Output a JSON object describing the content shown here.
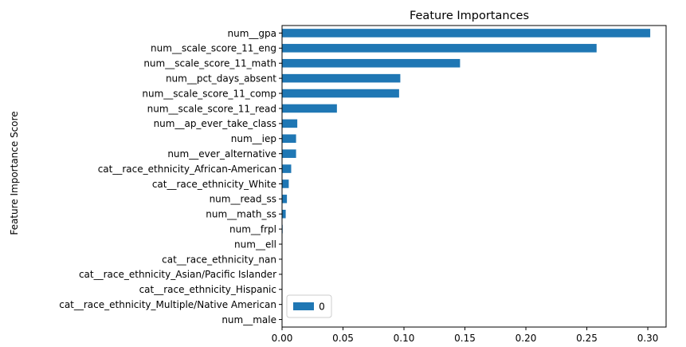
{
  "chart_data": {
    "type": "bar",
    "orientation": "horizontal",
    "title": "Feature Importances",
    "xlabel": "",
    "ylabel": "Feature Importance Score",
    "xlim": [
      0,
      0.315
    ],
    "xticks": [
      0.0,
      0.05,
      0.1,
      0.15,
      0.2,
      0.25,
      0.3
    ],
    "xtick_labels": [
      "0.00",
      "0.05",
      "0.10",
      "0.15",
      "0.20",
      "0.25",
      "0.30"
    ],
    "grid": false,
    "legend": {
      "placement": "lower-left",
      "entries": [
        "0"
      ]
    },
    "bar_color": "#1f77b4",
    "categories": [
      "num__gpa",
      "num__scale_score_11_eng",
      "num__scale_score_11_math",
      "num__pct_days_absent",
      "num__scale_score_11_comp",
      "num__scale_score_11_read",
      "num__ap_ever_take_class",
      "num__iep",
      "num__ever_alternative",
      "cat__race_ethnicity_African-American",
      "cat__race_ethnicity_White",
      "num__read_ss",
      "num__math_ss",
      "num__frpl",
      "num__ell",
      "cat__race_ethnicity_nan",
      "cat__race_ethnicity_Asian/Pacific Islander",
      "cat__race_ethnicity_Hispanic",
      "cat__race_ethnicity_Multiple/Native American",
      "num__male"
    ],
    "series": [
      {
        "name": "0",
        "values": [
          0.302,
          0.258,
          0.146,
          0.097,
          0.096,
          0.045,
          0.0125,
          0.0115,
          0.0115,
          0.0075,
          0.0055,
          0.004,
          0.003,
          0.0005,
          0.0003,
          0.0002,
          0.0001,
          0.0001,
          0.0001,
          0.0
        ]
      }
    ]
  }
}
